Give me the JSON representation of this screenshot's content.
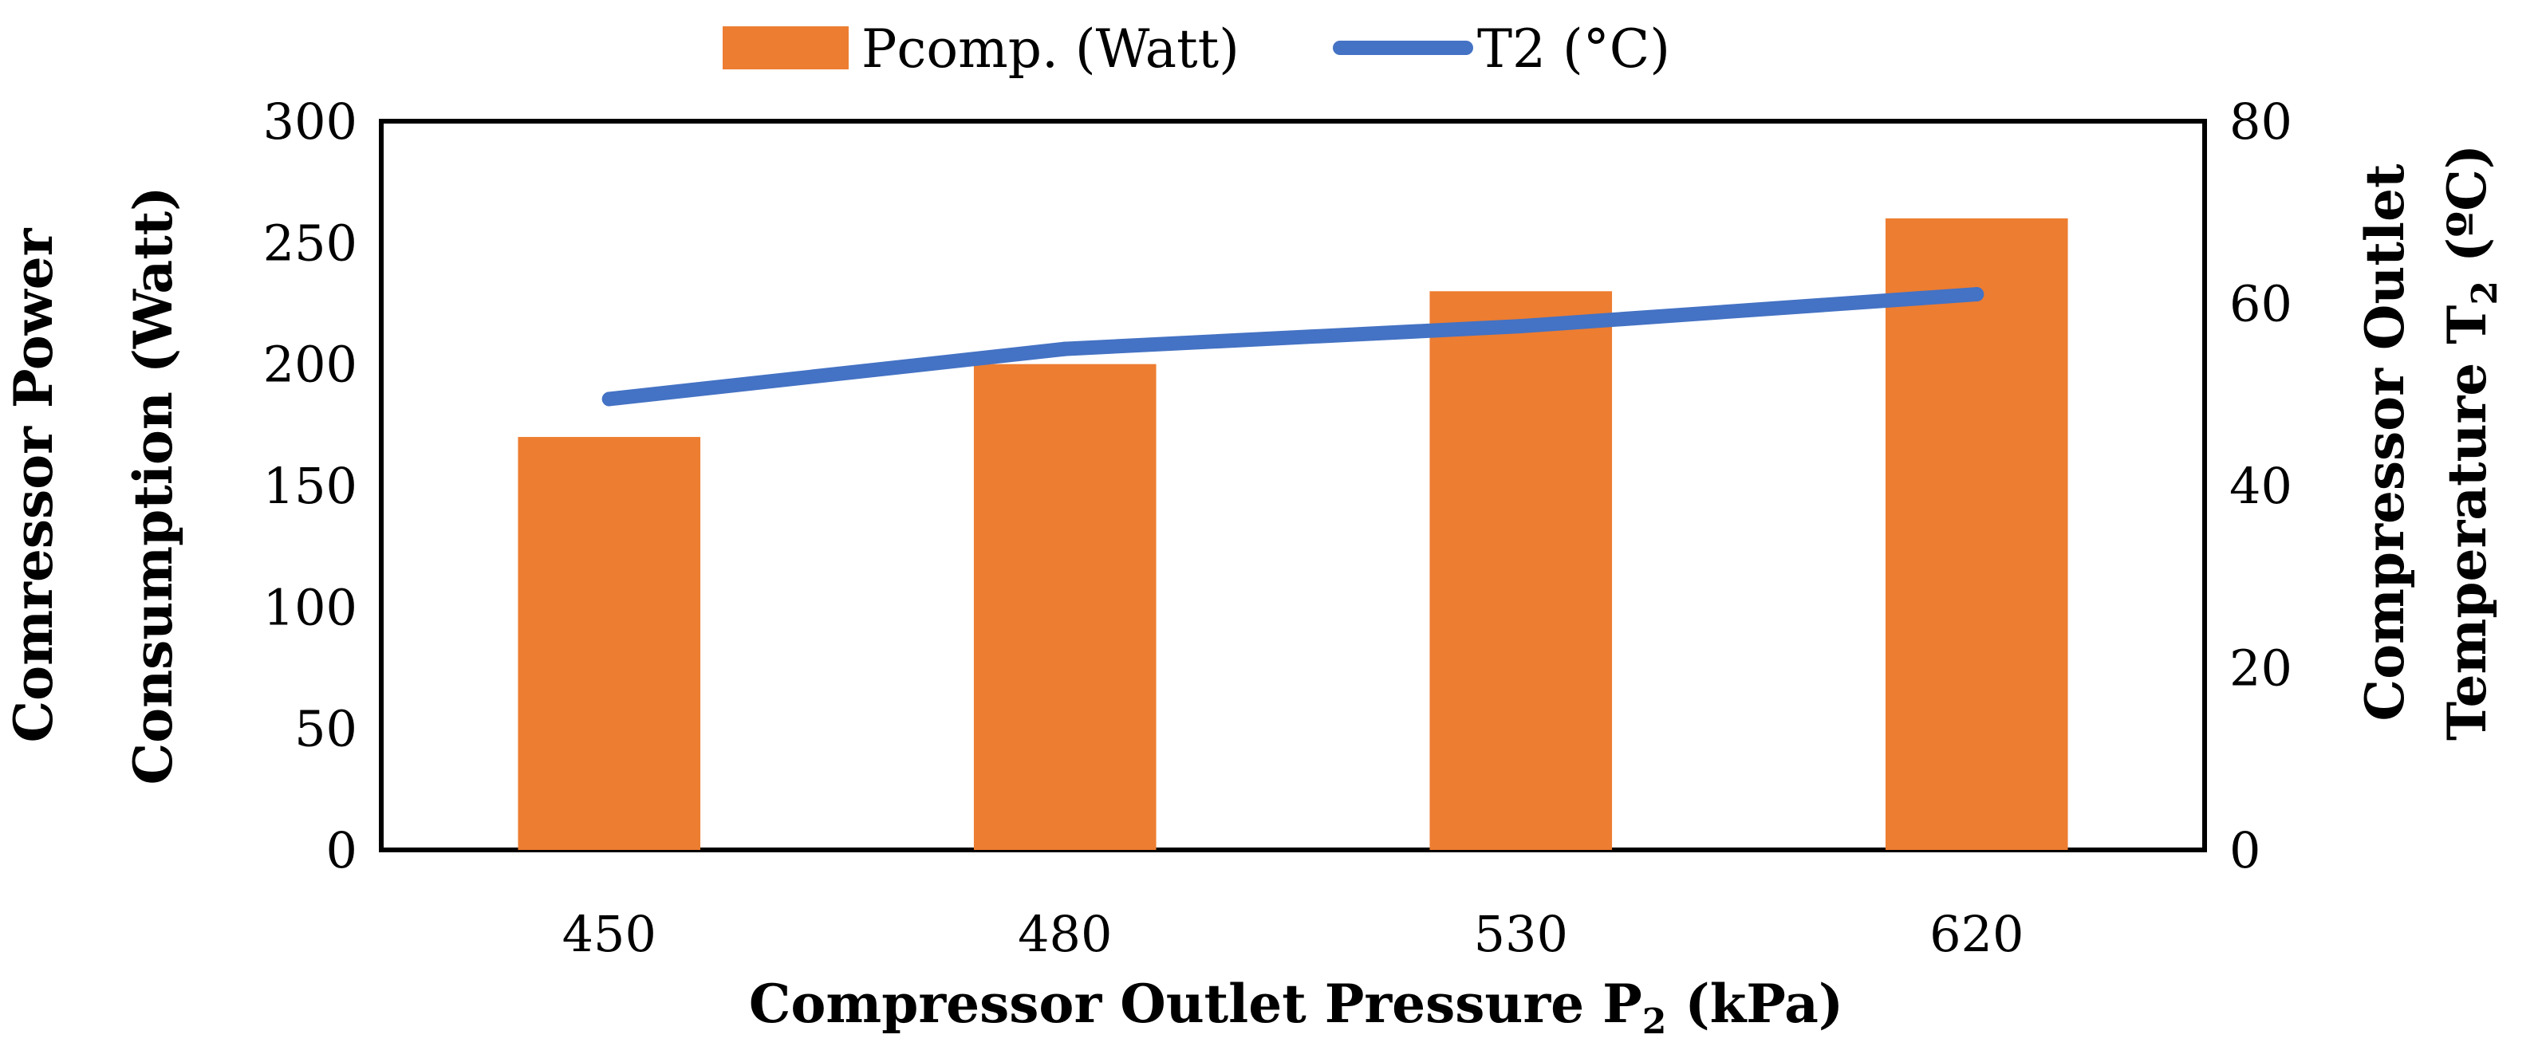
{
  "chart_data": {
    "type": "bar+line",
    "categories": [
      "450",
      "480",
      "530",
      "620"
    ],
    "series": [
      {
        "name": "Pcomp. (Watt)",
        "type": "bar",
        "axis": "left",
        "values": [
          170,
          200,
          230,
          260
        ],
        "color": "#ED7D31"
      },
      {
        "name": "T2 (°C)",
        "type": "line",
        "axis": "right",
        "values": [
          49.5,
          55,
          57.5,
          61
        ],
        "color": "#4472C4"
      }
    ],
    "xlabel": {
      "main": "Compressor Outlet Pressure P",
      "sub": "2",
      "unit": " (kPa)"
    },
    "ylabel_left": {
      "line1": "Comressor Power",
      "line2": "Consumption (Watt)"
    },
    "ylabel_right": {
      "line1": "Compressor Outlet",
      "line2_main": "Temperature T",
      "line2_sub": "2",
      "line2_unit": " (ºC)"
    },
    "ylim_left": [
      0,
      300
    ],
    "yticks_left": [
      "0",
      "50",
      "100",
      "150",
      "200",
      "250",
      "300"
    ],
    "ylim_right": [
      0,
      80
    ],
    "yticks_right": [
      "0",
      "20",
      "40",
      "60",
      "80"
    ],
    "legend": {
      "position": "top",
      "entries": [
        "Pcomp. (Watt)",
        "T2 (°C)"
      ]
    },
    "grid": false
  }
}
